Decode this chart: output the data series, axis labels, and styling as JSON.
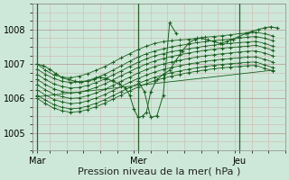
{
  "bg_color": "#cde8d8",
  "grid_color_major": "#c8a0a0",
  "grid_color_minor": "#dbbcbc",
  "line_color": "#1a6020",
  "vline_color": "#2a6030",
  "xlabel": "Pression niveau de la mer( hPa )",
  "xlabel_fontsize": 8,
  "yticks": [
    1005,
    1006,
    1007,
    1008
  ],
  "xtick_labels": [
    "Mar",
    "Mer",
    "Jeu"
  ],
  "xtick_positions": [
    0,
    48,
    96
  ],
  "xlim": [
    -2,
    118
  ],
  "ylim": [
    1004.65,
    1008.55
  ],
  "series": [
    {
      "x": [
        0,
        4,
        8,
        12,
        16,
        20,
        24,
        28,
        32,
        36,
        40,
        44,
        48,
        52,
        56,
        60,
        64,
        68,
        72,
        76,
        80,
        84,
        88,
        92,
        96,
        100,
        104,
        108,
        112
      ],
      "y": [
        1007.0,
        1006.82,
        1006.68,
        1006.62,
        1006.6,
        1006.65,
        1006.72,
        1006.82,
        1006.92,
        1007.05,
        1007.18,
        1007.3,
        1007.42,
        1007.52,
        1007.6,
        1007.65,
        1007.68,
        1007.7,
        1007.72,
        1007.75,
        1007.78,
        1007.8,
        1007.82,
        1007.85,
        1007.88,
        1007.9,
        1007.92,
        1007.88,
        1007.82
      ]
    },
    {
      "x": [
        0,
        4,
        8,
        12,
        16,
        20,
        24,
        28,
        32,
        36,
        40,
        44,
        48,
        52,
        56,
        60,
        64,
        68,
        72,
        76,
        80,
        84,
        88,
        92,
        96,
        100,
        104,
        108,
        112
      ],
      "y": [
        1006.85,
        1006.7,
        1006.58,
        1006.5,
        1006.46,
        1006.48,
        1006.52,
        1006.6,
        1006.7,
        1006.82,
        1006.95,
        1007.08,
        1007.2,
        1007.3,
        1007.38,
        1007.44,
        1007.5,
        1007.54,
        1007.58,
        1007.62,
        1007.65,
        1007.68,
        1007.7,
        1007.72,
        1007.75,
        1007.78,
        1007.8,
        1007.75,
        1007.68
      ]
    },
    {
      "x": [
        0,
        4,
        8,
        12,
        16,
        20,
        24,
        28,
        32,
        36,
        40,
        44,
        48,
        52,
        56,
        60,
        64,
        68,
        72,
        76,
        80,
        84,
        88,
        92,
        96,
        100,
        104,
        108,
        112
      ],
      "y": [
        1006.7,
        1006.55,
        1006.42,
        1006.35,
        1006.3,
        1006.32,
        1006.38,
        1006.46,
        1006.56,
        1006.68,
        1006.8,
        1006.93,
        1007.05,
        1007.15,
        1007.24,
        1007.3,
        1007.36,
        1007.4,
        1007.44,
        1007.48,
        1007.52,
        1007.55,
        1007.58,
        1007.6,
        1007.62,
        1007.64,
        1007.66,
        1007.6,
        1007.52
      ]
    },
    {
      "x": [
        0,
        4,
        8,
        12,
        16,
        20,
        24,
        28,
        32,
        36,
        40,
        44,
        48,
        52,
        56,
        60,
        64,
        68,
        72,
        76,
        80,
        84,
        88,
        92,
        96,
        100,
        104,
        108,
        112
      ],
      "y": [
        1006.55,
        1006.4,
        1006.28,
        1006.2,
        1006.16,
        1006.18,
        1006.24,
        1006.32,
        1006.42,
        1006.54,
        1006.66,
        1006.78,
        1006.9,
        1007.0,
        1007.09,
        1007.16,
        1007.22,
        1007.27,
        1007.32,
        1007.36,
        1007.4,
        1007.43,
        1007.46,
        1007.48,
        1007.5,
        1007.52,
        1007.54,
        1007.48,
        1007.4
      ]
    },
    {
      "x": [
        0,
        4,
        8,
        12,
        16,
        20,
        24,
        28,
        32,
        36,
        40,
        44,
        48,
        52,
        56,
        60,
        64,
        68,
        72,
        76,
        80,
        84,
        88,
        92,
        96,
        100,
        104,
        108,
        112
      ],
      "y": [
        1006.4,
        1006.25,
        1006.12,
        1006.05,
        1006.0,
        1006.02,
        1006.08,
        1006.16,
        1006.26,
        1006.38,
        1006.5,
        1006.62,
        1006.74,
        1006.84,
        1006.93,
        1007.0,
        1007.06,
        1007.11,
        1007.16,
        1007.2,
        1007.24,
        1007.27,
        1007.3,
        1007.32,
        1007.35,
        1007.37,
        1007.38,
        1007.32,
        1007.24
      ]
    },
    {
      "x": [
        0,
        4,
        8,
        12,
        16,
        20,
        24,
        28,
        32,
        36,
        40,
        44,
        48,
        52,
        56,
        60,
        64,
        68,
        72,
        76,
        80,
        84,
        88,
        92,
        96,
        100,
        104,
        108,
        112
      ],
      "y": [
        1006.25,
        1006.1,
        1005.97,
        1005.9,
        1005.85,
        1005.87,
        1005.93,
        1006.01,
        1006.11,
        1006.23,
        1006.35,
        1006.47,
        1006.58,
        1006.68,
        1006.77,
        1006.84,
        1006.9,
        1006.95,
        1007.0,
        1007.04,
        1007.08,
        1007.11,
        1007.14,
        1007.16,
        1007.18,
        1007.2,
        1007.21,
        1007.14,
        1007.06
      ]
    },
    {
      "x": [
        0,
        4,
        8,
        12,
        16,
        20,
        24,
        28,
        32,
        36,
        40,
        44,
        48,
        52,
        56,
        60,
        64,
        68,
        72,
        76,
        80,
        84,
        88,
        92,
        96,
        100,
        104,
        108,
        112
      ],
      "y": [
        1006.1,
        1005.95,
        1005.82,
        1005.74,
        1005.7,
        1005.72,
        1005.78,
        1005.86,
        1005.96,
        1006.08,
        1006.2,
        1006.32,
        1006.43,
        1006.53,
        1006.62,
        1006.69,
        1006.75,
        1006.8,
        1006.85,
        1006.89,
        1006.93,
        1006.96,
        1006.99,
        1007.01,
        1007.03,
        1007.05,
        1007.06,
        1006.98,
        1006.9
      ]
    },
    {
      "x": [
        0,
        4,
        8,
        12,
        16,
        20,
        24,
        28,
        32,
        36,
        40,
        44,
        48,
        52,
        56,
        60,
        64,
        68,
        72,
        76,
        80,
        84,
        88,
        92,
        96,
        100,
        104,
        108,
        112
      ],
      "y": [
        1006.0,
        1005.85,
        1005.72,
        1005.64,
        1005.6,
        1005.62,
        1005.68,
        1005.76,
        1005.86,
        1005.98,
        1006.1,
        1006.22,
        1006.33,
        1006.43,
        1006.52,
        1006.59,
        1006.65,
        1006.7,
        1006.75,
        1006.79,
        1006.83,
        1006.86,
        1006.89,
        1006.91,
        1006.93,
        1006.95,
        1006.96,
        1006.88,
        1006.8
      ]
    },
    {
      "x": [
        0,
        112
      ],
      "y": [
        1006.05,
        1006.82
      ]
    }
  ],
  "volatile_series": {
    "x": [
      0,
      3,
      6,
      9,
      12,
      15,
      18,
      21,
      24,
      27,
      30,
      33,
      36,
      39,
      42,
      44,
      46,
      48,
      50,
      52,
      54,
      57,
      60,
      63,
      66,
      69,
      72,
      75,
      78,
      81,
      84,
      87,
      90,
      93,
      96,
      99,
      102,
      105,
      108,
      111,
      114
    ],
    "y": [
      1007.0,
      1006.95,
      1006.85,
      1006.72,
      1006.6,
      1006.55,
      1006.5,
      1006.48,
      1006.5,
      1006.55,
      1006.62,
      1006.58,
      1006.5,
      1006.42,
      1006.3,
      1006.1,
      1005.7,
      1005.45,
      1005.48,
      1005.6,
      1006.2,
      1006.55,
      1006.7,
      1006.82,
      1007.1,
      1007.38,
      1007.6,
      1007.72,
      1007.75,
      1007.7,
      1007.65,
      1007.6,
      1007.65,
      1007.72,
      1007.8,
      1007.88,
      1007.95,
      1008.0,
      1008.05,
      1008.08,
      1008.05
    ]
  },
  "spike_series": {
    "x": [
      48,
      51,
      54,
      57,
      60,
      63,
      66
    ],
    "y": [
      1006.5,
      1006.2,
      1005.45,
      1005.5,
      1006.1,
      1008.2,
      1007.9
    ]
  }
}
